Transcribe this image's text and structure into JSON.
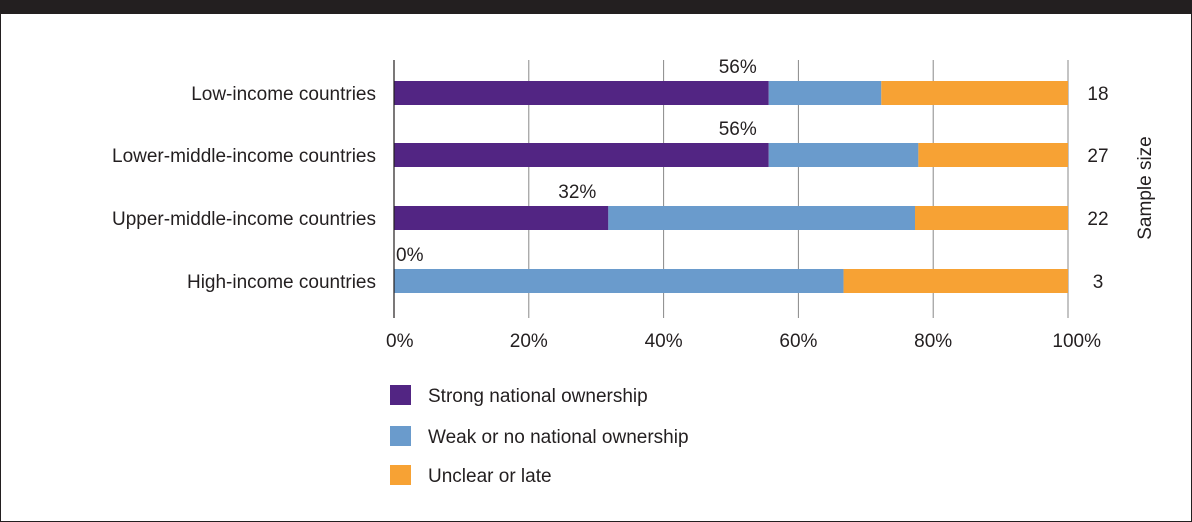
{
  "chart_data": {
    "type": "bar",
    "orientation": "horizontal",
    "stacked": true,
    "categories": [
      "Low-income countries",
      "Lower-middle-income countries",
      "Upper-middle-income countries",
      "High-income countries"
    ],
    "series": [
      {
        "name": "Strong national ownership",
        "values": [
          55.6,
          55.6,
          31.8,
          0
        ],
        "color": "#522583"
      },
      {
        "name": "Weak or no national ownership",
        "values": [
          16.7,
          22.2,
          45.5,
          66.7
        ],
        "color": "#6a9bcc"
      },
      {
        "name": "Unclear or late",
        "values": [
          27.7,
          22.2,
          22.7,
          33.3
        ],
        "color": "#f7a234"
      }
    ],
    "data_labels": [
      "56%",
      "56%",
      "32%",
      "0%"
    ],
    "sample_sizes": [
      "18",
      "27",
      "22",
      "3"
    ],
    "secondary_axis_label": "Sample size",
    "x_ticks": [
      "0%",
      "20%",
      "40%",
      "60%",
      "80%",
      "100%"
    ],
    "xlim": [
      0,
      100
    ],
    "grid": true,
    "legend_position": "bottom-left"
  }
}
